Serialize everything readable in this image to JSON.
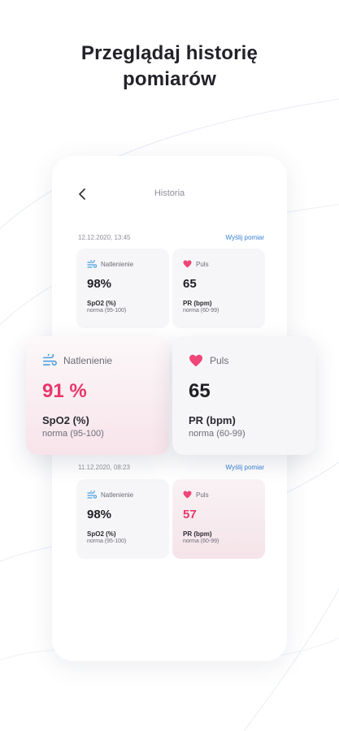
{
  "headline": {
    "line1": "Przeglądaj historię",
    "line2": "pomiarów"
  },
  "screen": {
    "title": "Historia"
  },
  "sections": [
    {
      "date": "12.12.2020,  13:45",
      "send_label": "Wyślij pomiar",
      "oxygen": {
        "label": "Natlenienie",
        "value": "98%",
        "unit": "SpO2 (%)",
        "norm": "norma (95-100)"
      },
      "pulse": {
        "label": "Puls",
        "value": "65",
        "unit": "PR (bpm)",
        "norm": "norma (60-99)"
      }
    },
    {
      "date": "11.12.2020,  08:23",
      "send_label": "Wyślij pomiar",
      "oxygen": {
        "label": "Natlenienie",
        "value": "98%",
        "unit": "SpO2 (%)",
        "norm": "norma (95-100)"
      },
      "pulse": {
        "label": "Puls",
        "value": "57",
        "unit": "PR (bpm)",
        "norm": "norma (60-99)"
      }
    }
  ],
  "highlight": {
    "oxygen": {
      "label": "Natlenienie",
      "value": "91 %",
      "unit": "SpO2 (%)",
      "norm": "norma (95-100)"
    },
    "pulse": {
      "label": "Puls",
      "value": "65",
      "unit": "PR (bpm)",
      "norm": "norma (60-99)"
    }
  },
  "colors": {
    "accent_red": "#e8386b",
    "heart": "#ee4677",
    "oxygen_icon": "#4a9fe0",
    "link_blue": "#3b82d6",
    "pink_card": "#f5e4e9"
  },
  "icons": {
    "back": "chevron-left-icon",
    "oxygen": "wind-icon",
    "pulse": "heart-icon"
  }
}
